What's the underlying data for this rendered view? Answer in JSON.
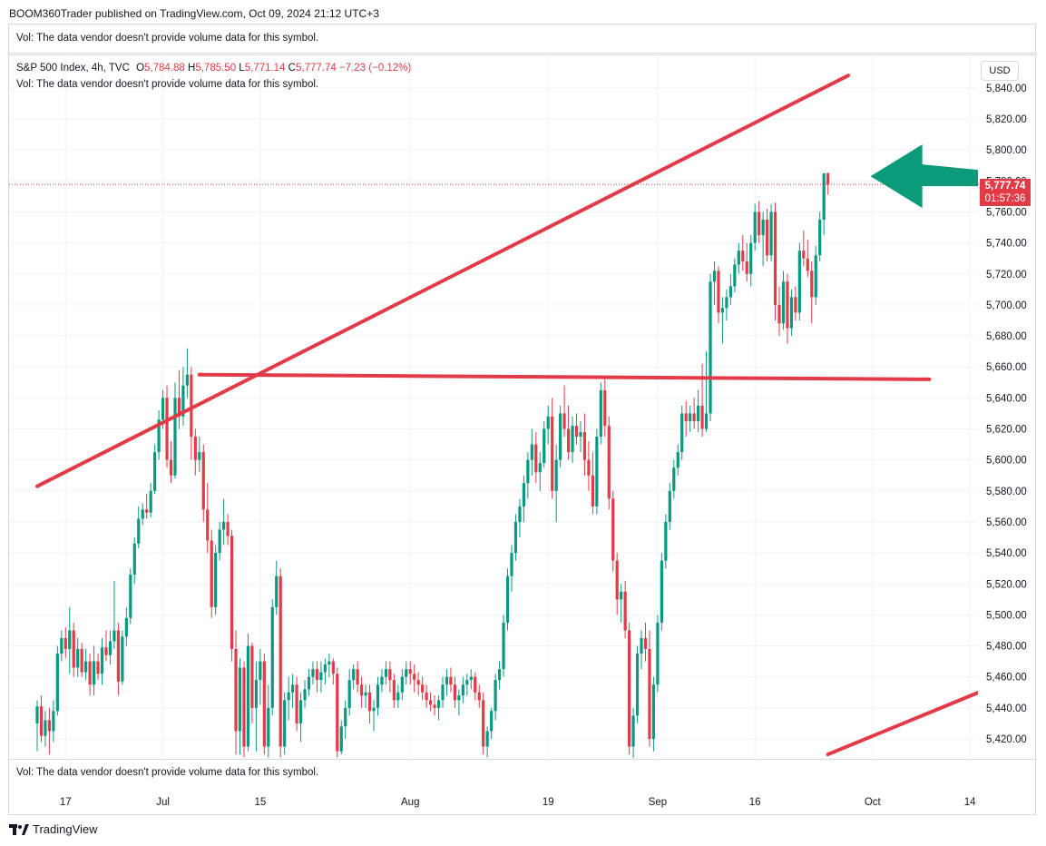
{
  "header": {
    "published": "BOOM360Trader published on TradingView.com, Oct 09, 2024 21:12 UTC+3"
  },
  "volume_note": "Vol: The data vendor doesn't provide volume data for this symbol.",
  "legend": {
    "symbol": "S&P 500 Index, 4h, TVC",
    "open_label": "O",
    "open": "5,784.88",
    "high_label": "H",
    "high": "5,785.50",
    "low_label": "L",
    "low": "5,771.14",
    "close_label": "C",
    "close": "5,777.74",
    "change": "−7.23 (−0.12%)"
  },
  "currency": "USD",
  "price_tag": {
    "price": "5,777.74",
    "countdown": "01:57:36"
  },
  "footer": {
    "brand": "TradingView"
  },
  "colors": {
    "up": "#089981",
    "down": "#e23b47",
    "line": "#e23b47",
    "arrow": "#0b9a7a"
  },
  "chart_data": {
    "type": "candlestick",
    "interval": "4h",
    "last_price": 5777.74,
    "ylim": [
      5410,
      5848
    ],
    "y_ticks": [
      5420,
      5440,
      5460,
      5480,
      5500,
      5520,
      5540,
      5560,
      5580,
      5600,
      5620,
      5640,
      5660,
      5680,
      5700,
      5720,
      5740,
      5760,
      5780,
      5800,
      5820,
      5840
    ],
    "y_tick_labels": [
      "5,420.00",
      "5,440.00",
      "5,460.00",
      "5,480.00",
      "5,500.00",
      "5,520.00",
      "5,540.00",
      "5,560.00",
      "5,580.00",
      "5,600.00",
      "5,620.00",
      "5,640.00",
      "5,660.00",
      "5,680.00",
      "5,700.00",
      "5,720.00",
      "5,740.00",
      "5,760.00",
      "5,780.00",
      "5,800.00",
      "5,820.00",
      "5,840.00"
    ],
    "x_tick_labels": [
      {
        "label": "17",
        "bar": 7
      },
      {
        "label": "Jul",
        "bar": 31
      },
      {
        "label": "15",
        "bar": 55
      },
      {
        "label": "Aug",
        "bar": 92
      },
      {
        "label": "19",
        "bar": 126
      },
      {
        "label": "Sep",
        "bar": 153
      },
      {
        "label": "16",
        "bar": 177
      },
      {
        "label": "Oct",
        "bar": 206
      },
      {
        "label": "14",
        "bar": 230
      }
    ],
    "candles": [
      [
        5430,
        5445,
        5412,
        5441
      ],
      [
        5441,
        5448,
        5418,
        5422
      ],
      [
        5422,
        5438,
        5415,
        5432
      ],
      [
        5432,
        5440,
        5410,
        5425
      ],
      [
        5425,
        5445,
        5418,
        5438
      ],
      [
        5438,
        5480,
        5435,
        5475
      ],
      [
        5475,
        5490,
        5470,
        5485
      ],
      [
        5485,
        5492,
        5472,
        5478
      ],
      [
        5478,
        5505,
        5462,
        5490
      ],
      [
        5490,
        5495,
        5460,
        5466
      ],
      [
        5466,
        5485,
        5460,
        5478
      ],
      [
        5478,
        5482,
        5460,
        5463
      ],
      [
        5463,
        5478,
        5458,
        5470
      ],
      [
        5470,
        5475,
        5448,
        5455
      ],
      [
        5455,
        5480,
        5448,
        5470
      ],
      [
        5470,
        5475,
        5458,
        5462
      ],
      [
        5462,
        5485,
        5455,
        5479
      ],
      [
        5479,
        5490,
        5470,
        5474
      ],
      [
        5474,
        5490,
        5468,
        5483
      ],
      [
        5483,
        5522,
        5478,
        5490
      ],
      [
        5490,
        5495,
        5448,
        5457
      ],
      [
        5457,
        5490,
        5455,
        5486
      ],
      [
        5486,
        5505,
        5480,
        5498
      ],
      [
        5498,
        5530,
        5494,
        5526
      ],
      [
        5526,
        5550,
        5520,
        5546
      ],
      [
        5546,
        5570,
        5543,
        5562
      ],
      [
        5562,
        5572,
        5558,
        5568
      ],
      [
        5568,
        5578,
        5562,
        5566
      ],
      [
        5566,
        5585,
        5563,
        5580
      ],
      [
        5580,
        5610,
        5578,
        5605
      ],
      [
        5605,
        5632,
        5600,
        5626
      ],
      [
        5626,
        5645,
        5620,
        5640
      ],
      [
        5640,
        5648,
        5595,
        5600
      ],
      [
        5600,
        5612,
        5585,
        5590
      ],
      [
        5590,
        5650,
        5588,
        5640
      ],
      [
        5640,
        5658,
        5620,
        5628
      ],
      [
        5628,
        5660,
        5622,
        5648
      ],
      [
        5648,
        5672,
        5640,
        5655
      ],
      [
        5655,
        5660,
        5600,
        5615
      ],
      [
        5615,
        5620,
        5590,
        5600
      ],
      [
        5600,
        5615,
        5592,
        5605
      ],
      [
        5605,
        5610,
        5560,
        5568
      ],
      [
        5568,
        5585,
        5540,
        5548
      ],
      [
        5548,
        5555,
        5498,
        5505
      ],
      [
        5505,
        5545,
        5500,
        5540
      ],
      [
        5540,
        5560,
        5535,
        5555
      ],
      [
        5555,
        5575,
        5545,
        5560
      ],
      [
        5560,
        5565,
        5545,
        5551
      ],
      [
        5551,
        5555,
        5470,
        5478
      ],
      [
        5478,
        5490,
        5410,
        5425
      ],
      [
        5425,
        5472,
        5410,
        5466
      ],
      [
        5466,
        5470,
        5408,
        5415
      ],
      [
        5415,
        5488,
        5412,
        5480
      ],
      [
        5480,
        5482,
        5430,
        5440
      ],
      [
        5440,
        5470,
        5412,
        5458
      ],
      [
        5458,
        5478,
        5442,
        5470
      ],
      [
        5470,
        5475,
        5410,
        5415
      ],
      [
        5415,
        5455,
        5408,
        5440
      ],
      [
        5440,
        5510,
        5435,
        5505
      ],
      [
        5505,
        5535,
        5500,
        5525
      ],
      [
        5525,
        5530,
        5408,
        5415
      ],
      [
        5415,
        5450,
        5410,
        5445
      ],
      [
        5445,
        5460,
        5432,
        5450
      ],
      [
        5450,
        5462,
        5440,
        5455
      ],
      [
        5455,
        5460,
        5425,
        5430
      ],
      [
        5430,
        5450,
        5418,
        5445
      ],
      [
        5445,
        5458,
        5440,
        5452
      ],
      [
        5452,
        5465,
        5448,
        5460
      ],
      [
        5460,
        5470,
        5455,
        5465
      ],
      [
        5465,
        5470,
        5450,
        5458
      ],
      [
        5458,
        5470,
        5450,
        5463
      ],
      [
        5463,
        5472,
        5455,
        5468
      ],
      [
        5468,
        5475,
        5460,
        5470
      ],
      [
        5470,
        5472,
        5455,
        5462
      ],
      [
        5462,
        5466,
        5408,
        5412
      ],
      [
        5412,
        5432,
        5410,
        5428
      ],
      [
        5428,
        5445,
        5420,
        5440
      ],
      [
        5440,
        5465,
        5435,
        5458
      ],
      [
        5458,
        5468,
        5452,
        5465
      ],
      [
        5465,
        5470,
        5450,
        5455
      ],
      [
        5455,
        5460,
        5440,
        5448
      ],
      [
        5448,
        5455,
        5440,
        5450
      ],
      [
        5450,
        5455,
        5430,
        5438
      ],
      [
        5438,
        5445,
        5425,
        5440
      ],
      [
        5440,
        5460,
        5435,
        5455
      ],
      [
        5455,
        5465,
        5450,
        5460
      ],
      [
        5460,
        5470,
        5455,
        5465
      ],
      [
        5465,
        5470,
        5450,
        5458
      ],
      [
        5458,
        5462,
        5440,
        5445
      ],
      [
        5445,
        5455,
        5440,
        5450
      ],
      [
        5450,
        5465,
        5445,
        5460
      ],
      [
        5460,
        5470,
        5455,
        5465
      ],
      [
        5465,
        5470,
        5455,
        5462
      ],
      [
        5462,
        5468,
        5450,
        5458
      ],
      [
        5458,
        5463,
        5448,
        5455
      ],
      [
        5455,
        5460,
        5445,
        5450
      ],
      [
        5450,
        5455,
        5440,
        5445
      ],
      [
        5445,
        5450,
        5438,
        5442
      ],
      [
        5442,
        5448,
        5435,
        5440
      ],
      [
        5440,
        5448,
        5432,
        5445
      ],
      [
        5445,
        5460,
        5440,
        5455
      ],
      [
        5455,
        5465,
        5448,
        5460
      ],
      [
        5460,
        5466,
        5450,
        5455
      ],
      [
        5455,
        5460,
        5440,
        5445
      ],
      [
        5445,
        5452,
        5435,
        5448
      ],
      [
        5448,
        5460,
        5443,
        5455
      ],
      [
        5455,
        5462,
        5448,
        5458
      ],
      [
        5458,
        5465,
        5452,
        5460
      ],
      [
        5460,
        5463,
        5445,
        5450
      ],
      [
        5450,
        5455,
        5440,
        5445
      ],
      [
        5445,
        5450,
        5410,
        5415
      ],
      [
        5415,
        5428,
        5408,
        5425
      ],
      [
        5425,
        5440,
        5420,
        5438
      ],
      [
        5438,
        5462,
        5432,
        5458
      ],
      [
        5458,
        5470,
        5452,
        5465
      ],
      [
        5465,
        5500,
        5460,
        5495
      ],
      [
        5495,
        5530,
        5490,
        5525
      ],
      [
        5525,
        5545,
        5515,
        5540
      ],
      [
        5540,
        5565,
        5535,
        5560
      ],
      [
        5560,
        5575,
        5550,
        5570
      ],
      [
        5570,
        5590,
        5560,
        5585
      ],
      [
        5585,
        5605,
        5575,
        5600
      ],
      [
        5600,
        5620,
        5590,
        5610
      ],
      [
        5610,
        5618,
        5585,
        5592
      ],
      [
        5592,
        5605,
        5580,
        5598
      ],
      [
        5598,
        5625,
        5595,
        5620
      ],
      [
        5620,
        5635,
        5610,
        5628
      ],
      [
        5628,
        5640,
        5575,
        5580
      ],
      [
        5580,
        5610,
        5560,
        5600
      ],
      [
        5600,
        5635,
        5595,
        5630
      ],
      [
        5630,
        5648,
        5615,
        5620
      ],
      [
        5620,
        5635,
        5600,
        5605
      ],
      [
        5605,
        5628,
        5598,
        5622
      ],
      [
        5622,
        5630,
        5610,
        5615
      ],
      [
        5615,
        5625,
        5605,
        5618
      ],
      [
        5618,
        5630,
        5590,
        5600
      ],
      [
        5600,
        5612,
        5580,
        5590
      ],
      [
        5590,
        5605,
        5565,
        5570
      ],
      [
        5570,
        5620,
        5565,
        5615
      ],
      [
        5615,
        5650,
        5610,
        5645
      ],
      [
        5645,
        5652,
        5615,
        5622
      ],
      [
        5622,
        5628,
        5568,
        5575
      ],
      [
        5575,
        5580,
        5528,
        5535
      ],
      [
        5535,
        5540,
        5500,
        5510
      ],
      [
        5510,
        5520,
        5495,
        5515
      ],
      [
        5515,
        5522,
        5485,
        5490
      ],
      [
        5490,
        5495,
        5410,
        5415
      ],
      [
        5415,
        5440,
        5405,
        5435
      ],
      [
        5435,
        5480,
        5430,
        5475
      ],
      [
        5475,
        5490,
        5465,
        5485
      ],
      [
        5485,
        5495,
        5470,
        5478
      ],
      [
        5478,
        5490,
        5415,
        5420
      ],
      [
        5420,
        5460,
        5412,
        5455
      ],
      [
        5455,
        5500,
        5450,
        5495
      ],
      [
        5495,
        5540,
        5490,
        5535
      ],
      [
        5535,
        5565,
        5530,
        5560
      ],
      [
        5560,
        5585,
        5555,
        5580
      ],
      [
        5580,
        5600,
        5575,
        5595
      ],
      [
        5595,
        5610,
        5590,
        5605
      ],
      [
        5605,
        5635,
        5600,
        5630
      ],
      [
        5630,
        5638,
        5615,
        5625
      ],
      [
        5625,
        5635,
        5618,
        5630
      ],
      [
        5630,
        5640,
        5620,
        5625
      ],
      [
        5625,
        5645,
        5618,
        5635
      ],
      [
        5635,
        5662,
        5615,
        5620
      ],
      [
        5620,
        5670,
        5618,
        5630
      ],
      [
        5630,
        5720,
        5625,
        5715
      ],
      [
        5715,
        5728,
        5700,
        5722
      ],
      [
        5722,
        5725,
        5688,
        5695
      ],
      [
        5695,
        5705,
        5675,
        5698
      ],
      [
        5698,
        5710,
        5690,
        5705
      ],
      [
        5705,
        5720,
        5700,
        5712
      ],
      [
        5712,
        5730,
        5708,
        5726
      ],
      [
        5726,
        5740,
        5720,
        5735
      ],
      [
        5735,
        5745,
        5722,
        5728
      ],
      [
        5728,
        5740,
        5715,
        5720
      ],
      [
        5720,
        5745,
        5712,
        5740
      ],
      [
        5740,
        5765,
        5735,
        5760
      ],
      [
        5760,
        5767,
        5740,
        5745
      ],
      [
        5745,
        5760,
        5725,
        5755
      ],
      [
        5755,
        5762,
        5728,
        5732
      ],
      [
        5732,
        5765,
        5728,
        5760
      ],
      [
        5760,
        5766,
        5690,
        5700
      ],
      [
        5700,
        5712,
        5680,
        5688
      ],
      [
        5688,
        5722,
        5684,
        5715
      ],
      [
        5715,
        5720,
        5675,
        5685
      ],
      [
        5685,
        5710,
        5680,
        5705
      ],
      [
        5705,
        5712,
        5690,
        5695
      ],
      [
        5695,
        5740,
        5690,
        5735
      ],
      [
        5735,
        5748,
        5725,
        5730
      ],
      [
        5730,
        5742,
        5718,
        5722
      ],
      [
        5722,
        5728,
        5688,
        5705
      ],
      [
        5705,
        5738,
        5700,
        5732
      ],
      [
        5732,
        5760,
        5728,
        5755
      ],
      [
        5755,
        5785,
        5745,
        5784.88
      ],
      [
        5784.88,
        5785.5,
        5771.14,
        5777.74
      ]
    ],
    "trendlines": [
      {
        "bar1": 0,
        "y1": 5583,
        "bar2": 200,
        "y2": 5848
      },
      {
        "bar1": 40,
        "y1": 5655,
        "bar2": 220,
        "y2": 5652
      },
      {
        "bar1": 195,
        "y1": 5410,
        "bar2": 260,
        "y2": 5480
      }
    ],
    "annotations": [
      {
        "type": "arrow",
        "direction": "left",
        "bar": 212,
        "y": 5783
      }
    ]
  }
}
